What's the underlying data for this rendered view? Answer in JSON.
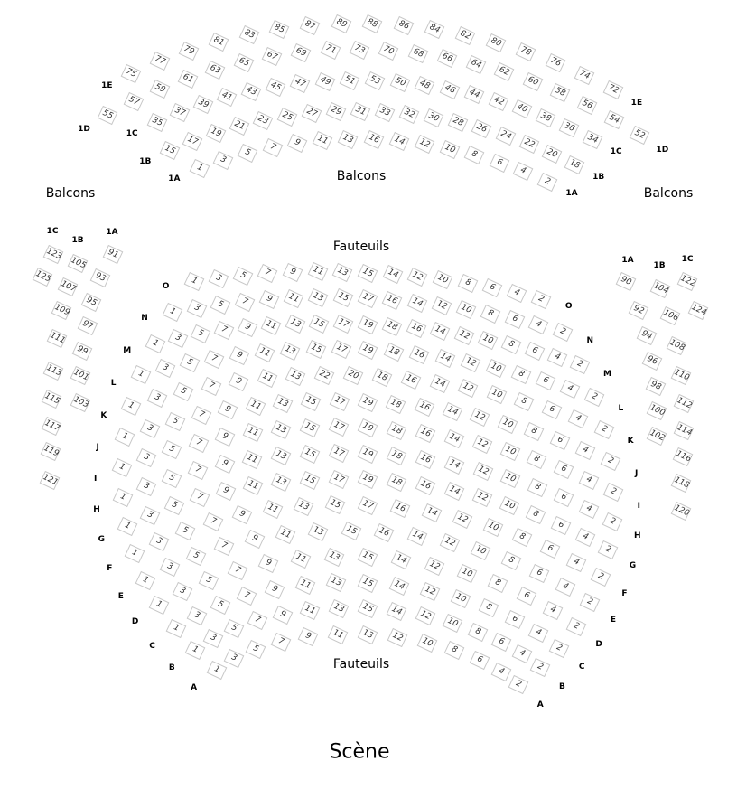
{
  "labels": {
    "balcons_left": "Balcons",
    "balcons_center": "Balcons",
    "balcons_right": "Balcons",
    "fauteuils_top": "Fauteuils",
    "fauteuils_bottom": "Fauteuils",
    "stage": "Scène"
  },
  "balcony_rows": [
    {
      "label": "1A",
      "seats": [
        1,
        3,
        5,
        7,
        9,
        11,
        13,
        16,
        14,
        12,
        10,
        8,
        6,
        4,
        2
      ]
    },
    {
      "label": "1B",
      "seats": [
        15,
        17,
        19,
        21,
        23,
        25,
        27,
        29,
        31,
        33,
        32,
        30,
        28,
        26,
        24,
        22,
        20,
        18
      ]
    },
    {
      "label": "1C",
      "seats": [
        35,
        37,
        39,
        41,
        43,
        45,
        47,
        49,
        51,
        53,
        50,
        48,
        46,
        44,
        42,
        40,
        38,
        36,
        34
      ]
    },
    {
      "label": "1D",
      "seats": [
        55,
        57,
        59,
        61,
        63,
        65,
        67,
        69,
        71,
        73,
        70,
        68,
        66,
        64,
        62,
        60,
        58,
        56,
        54,
        52
      ]
    },
    {
      "label": "1E",
      "seats": [
        75,
        77,
        79,
        81,
        83,
        85,
        87,
        89,
        88,
        86,
        84,
        82,
        80,
        78,
        76,
        74,
        72
      ]
    }
  ],
  "fauteuils_rows": [
    {
      "label": "A",
      "seats": [
        1,
        3,
        5,
        7,
        9,
        11,
        13,
        12,
        10,
        8,
        6,
        4,
        2
      ]
    },
    {
      "label": "B",
      "seats": [
        1,
        3,
        5,
        7,
        9,
        11,
        13,
        15,
        14,
        12,
        10,
        8,
        6,
        4,
        2
      ]
    },
    {
      "label": "C",
      "seats": [
        1,
        3,
        5,
        7,
        9,
        11,
        13,
        15,
        14,
        12,
        10,
        8,
        6,
        4,
        2
      ]
    },
    {
      "label": "D",
      "seats": [
        1,
        3,
        5,
        7,
        9,
        11,
        13,
        15,
        14,
        12,
        10,
        8,
        6,
        4,
        2
      ]
    },
    {
      "label": "E",
      "seats": [
        1,
        3,
        5,
        7,
        9,
        11,
        13,
        15,
        16,
        14,
        12,
        10,
        8,
        6,
        4,
        2
      ]
    },
    {
      "label": "F",
      "seats": [
        1,
        3,
        5,
        7,
        9,
        11,
        13,
        15,
        17,
        16,
        14,
        12,
        10,
        8,
        6,
        4,
        2
      ]
    },
    {
      "label": "G",
      "seats": [
        1,
        3,
        5,
        7,
        9,
        11,
        13,
        15,
        17,
        19,
        18,
        16,
        14,
        12,
        10,
        8,
        6,
        4,
        2
      ]
    },
    {
      "label": "H",
      "seats": [
        1,
        3,
        5,
        7,
        9,
        11,
        13,
        15,
        17,
        19,
        18,
        16,
        14,
        12,
        10,
        8,
        6,
        4,
        2
      ]
    },
    {
      "label": "I",
      "seats": [
        1,
        3,
        5,
        7,
        9,
        11,
        13,
        15,
        17,
        19,
        18,
        16,
        14,
        12,
        10,
        8,
        6,
        4,
        2
      ]
    },
    {
      "label": "J",
      "seats": [
        1,
        3,
        5,
        7,
        9,
        11,
        13,
        15,
        17,
        19,
        18,
        16,
        14,
        12,
        10,
        8,
        6,
        4,
        2
      ]
    },
    {
      "label": "K",
      "seats": [
        1,
        3,
        5,
        7,
        9,
        11,
        13,
        22,
        20,
        18,
        16,
        14,
        12,
        10,
        8,
        6,
        4,
        2
      ]
    },
    {
      "label": "L",
      "seats": [
        1,
        3,
        5,
        7,
        9,
        11,
        13,
        15,
        17,
        19,
        18,
        16,
        14,
        12,
        10,
        8,
        6,
        4,
        2
      ]
    },
    {
      "label": "M",
      "seats": [
        1,
        3,
        5,
        7,
        9,
        11,
        13,
        15,
        17,
        19,
        18,
        16,
        14,
        12,
        10,
        8,
        6,
        4,
        2
      ]
    },
    {
      "label": "N",
      "seats": [
        1,
        3,
        5,
        7,
        9,
        11,
        13,
        15,
        17,
        16,
        14,
        12,
        10,
        8,
        6,
        4,
        2
      ]
    },
    {
      "label": "O",
      "seats": [
        1,
        3,
        5,
        7,
        9,
        11,
        13,
        15,
        14,
        12,
        10,
        8,
        6,
        4,
        2
      ]
    }
  ],
  "side_left": [
    {
      "label": "1C",
      "seats": [
        123,
        125
      ]
    },
    {
      "label": "1B",
      "seats": [
        105,
        107,
        109,
        111,
        113,
        115,
        117,
        119,
        121
      ]
    },
    {
      "label": "1A",
      "seats": [
        91,
        93,
        95,
        97,
        99,
        101,
        103
      ]
    }
  ],
  "side_right": [
    {
      "label": "1A",
      "seats": [
        90,
        92,
        94,
        96,
        98,
        100,
        102
      ]
    },
    {
      "label": "1B",
      "seats": [
        104,
        106,
        108,
        110,
        112,
        114,
        116,
        118,
        120
      ]
    },
    {
      "label": "1C",
      "seats": [
        122,
        124
      ]
    }
  ]
}
